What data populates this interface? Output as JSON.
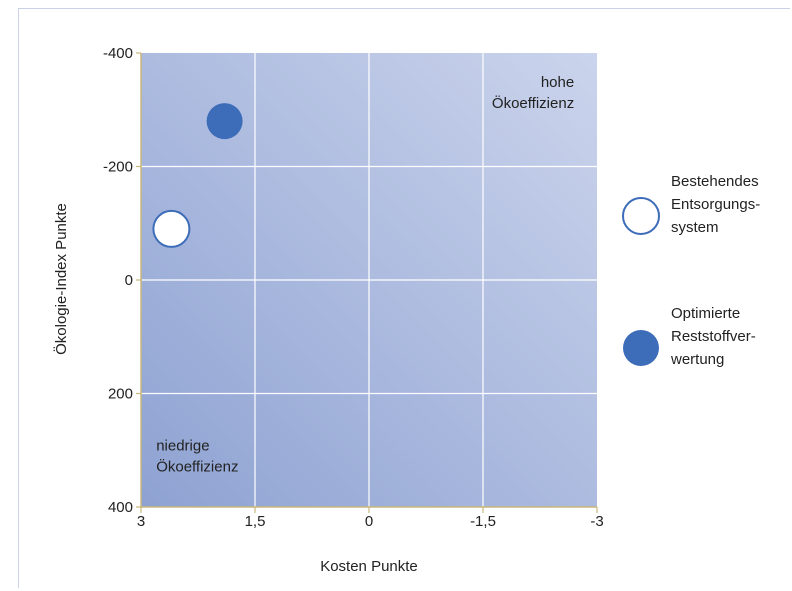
{
  "chart_data": {
    "type": "scatter",
    "xlabel": "Kosten   Punkte",
    "ylabel": "Ökologie-Index   Punkte",
    "xlim": [
      3,
      -3
    ],
    "ylim": [
      400,
      -400
    ],
    "x_ticks": [
      {
        "v": 3,
        "label": "3"
      },
      {
        "v": 1.5,
        "label": "1,5"
      },
      {
        "v": 0,
        "label": "0"
      },
      {
        "v": -1.5,
        "label": "-1,5"
      },
      {
        "v": -3,
        "label": "-3"
      }
    ],
    "y_ticks": [
      {
        "v": -400,
        "label": "-400"
      },
      {
        "v": -200,
        "label": "-200"
      },
      {
        "v": 0,
        "label": "0"
      },
      {
        "v": 200,
        "label": "200"
      },
      {
        "v": 400,
        "label": "400"
      }
    ],
    "grid": true,
    "annotations": [
      {
        "x": -2.7,
        "y": -340,
        "anchor": "end",
        "lines": [
          "hohe",
          "Ökoeffizienz"
        ]
      },
      {
        "x": 2.8,
        "y": 300,
        "anchor": "start",
        "lines": [
          "niedrige",
          "Ökoeffizienz"
        ]
      }
    ],
    "series": [
      {
        "name": "Bestehendes Entsorgungssystem",
        "legend_lines": [
          "Bestehendes",
          "Entsorgungs-",
          "system"
        ],
        "marker": "open-circle",
        "points": [
          {
            "x": 2.6,
            "y": -90
          }
        ]
      },
      {
        "name": "Optimierte Reststoffverwertung",
        "legend_lines": [
          "Optimierte",
          "Reststoffver-",
          "wertung"
        ],
        "marker": "filled-circle",
        "points": [
          {
            "x": 1.9,
            "y": -280
          }
        ]
      }
    ],
    "legend_position": "right",
    "colors": {
      "marker_blue": "#3d6cb9",
      "bg_dark": "#8ea2d2",
      "bg_light": "#cbd4ec",
      "grid": "#ffffff",
      "frame": "#c8b77a"
    }
  }
}
